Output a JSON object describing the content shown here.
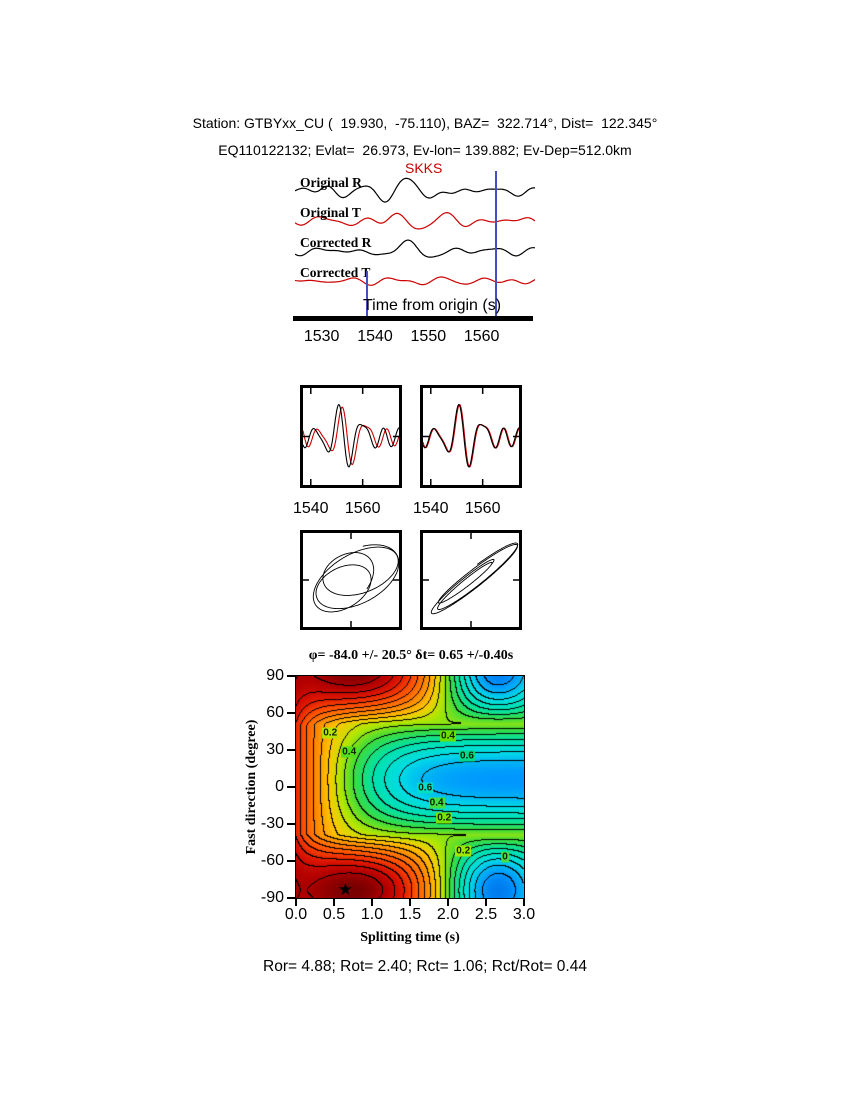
{
  "header": {
    "line1": "Station: GTBYxx_CU (  19.930,  -75.110), BAZ=  322.714°, Dist=  122.345°",
    "line2": "EQ110122132; Evlat=  26.973, Ev-lon= 139.882; Ev-Dep=512.0km"
  },
  "footer": {
    "stats": "Ror= 4.88; Rot= 2.40; Rct= 1.06; Rct/Rot= 0.44"
  },
  "colors": {
    "radial_trace": "#000000",
    "transverse_trace": "#cc0000",
    "window_marker": "#4450c0",
    "star": "#000000",
    "low_misfit": "#780000",
    "mid_misfit": "#3cdc3c",
    "high_misfit": "#003cc8"
  },
  "chart_data": {
    "type": "composite-shear-wave-splitting",
    "seismograms": {
      "phase_label": "SKKS",
      "axis": {
        "label": "Time from origin (s)",
        "t_min": 1525,
        "t_max": 1570,
        "ticks": [
          1530,
          1540,
          1550,
          1560
        ]
      },
      "window": {
        "start": 1538.3,
        "end": 1562.5
      },
      "traces": [
        {
          "label": "Original R",
          "color": "#000000",
          "base": 26,
          "components": [
            {
              "type": "gabor",
              "t0": 1546.5,
              "s": 4.5,
              "T": 9.5,
              "a": 15,
              "ph": 0.3
            },
            {
              "type": "gabor",
              "t0": 1532,
              "s": 3,
              "T": 7,
              "a": 3.5,
              "ph": 1.2
            },
            {
              "type": "sin",
              "T": 6.3,
              "a": 2.0,
              "ph": 0.5
            },
            {
              "type": "sin",
              "T": 11,
              "a": 2.3,
              "ph": 2.1
            },
            {
              "type": "sin",
              "T": 4.2,
              "a": 1.0,
              "ph": 4.0
            }
          ]
        },
        {
          "label": "Original T",
          "color": "#cc0000",
          "base": 56,
          "components": [
            {
              "type": "gabor",
              "t0": 1547,
              "s": 5,
              "T": 9.5,
              "a": 6,
              "ph": 2.2
            },
            {
              "type": "sin",
              "T": 7.5,
              "a": 2.6,
              "ph": 1.0
            },
            {
              "type": "sin",
              "T": 5.1,
              "a": 1.8,
              "ph": 3.3
            },
            {
              "type": "sin",
              "T": 12,
              "a": 2.0,
              "ph": 5.0
            }
          ]
        },
        {
          "label": "Corrected R",
          "color": "#000000",
          "base": 86,
          "components": [
            {
              "type": "gabor",
              "t0": 1546.8,
              "s": 4.5,
              "T": 9.5,
              "a": 14,
              "ph": 0.5
            },
            {
              "type": "sin",
              "T": 6.8,
              "a": 1.8,
              "ph": 2.5
            },
            {
              "type": "sin",
              "T": 10,
              "a": 2.1,
              "ph": 0.8
            },
            {
              "type": "sin",
              "T": 4.5,
              "a": 1.0,
              "ph": 3.9
            }
          ]
        },
        {
          "label": "Corrected T",
          "color": "#cc0000",
          "base": 116,
          "components": [
            {
              "type": "gabor",
              "t0": 1549,
              "s": 6,
              "T": 8,
              "a": 2.5,
              "ph": 4.0
            },
            {
              "type": "sin",
              "T": 6.0,
              "a": 1.6,
              "ph": 1.9
            },
            {
              "type": "sin",
              "T": 9,
              "a": 1.5,
              "ph": 4.4
            },
            {
              "type": "sin",
              "T": 4.8,
              "a": 0.9,
              "ph": 0.2
            }
          ]
        }
      ]
    },
    "wave_pairs": {
      "t_min": 1537,
      "t_max": 1574,
      "ticks": [
        1540,
        1560
      ],
      "components": [
        {
          "type": "gabor",
          "t0": 1551,
          "s": 7,
          "T": 9,
          "a": 20,
          "ph": 0.3
        },
        {
          "type": "sin",
          "T": 5.6,
          "a": 6,
          "ph": 1.5
        },
        {
          "type": "sin",
          "T": 8.4,
          "a": 5.5,
          "ph": 3.8
        },
        {
          "type": "sin",
          "T": 13,
          "a": 4,
          "ph": 0.9
        }
      ],
      "boxes": [
        {
          "name": "original",
          "shift": 1.3,
          "scale": 0.92
        },
        {
          "name": "corrected",
          "shift": 0.3,
          "scale": 1.0
        }
      ]
    },
    "particle_motion": {
      "boxes": [
        {
          "name": "original",
          "x": [
            [
              34,
              0.5,
              0
            ],
            [
              14,
              0.23,
              1.0
            ]
          ],
          "y": [
            [
              26,
              0.5,
              1.15
            ],
            [
              11,
              0.19,
              2.0
            ]
          ]
        },
        {
          "name": "corrected",
          "x": [
            [
              34,
              0.5,
              0
            ],
            [
              13,
              0.27,
              0.5
            ]
          ],
          "y": [
            [
              27,
              0.5,
              0.28
            ],
            [
              10,
              0.27,
              0.95
            ]
          ]
        }
      ]
    },
    "misfit_surface": {
      "title": "φ= -84.0 +/- 20.5° δt= 0.65 +/-0.40s",
      "xlabel": "Splitting time (s)",
      "ylabel": "Fast direction (degree)",
      "phi_deg": -84.0,
      "phi_err_deg": 20.5,
      "dt_s": 0.65,
      "dt_err_s": 0.4,
      "x_range": [
        0,
        3
      ],
      "y_range": [
        -90,
        90
      ],
      "xticks": [
        "0.0",
        "0.5",
        "1.0",
        "1.5",
        "2.0",
        "2.5",
        "3.0"
      ],
      "yticks": [
        90,
        60,
        30,
        0,
        -30,
        -60,
        -90
      ],
      "best_fit": {
        "dt": 0.65,
        "phi": -84
      },
      "contour_interval": 0.05,
      "contour_labels": [
        {
          "text": "0.2",
          "dt": 0.45,
          "phi": 44,
          "bg": "#b8e400"
        },
        {
          "text": "0.4",
          "dt": 0.7,
          "phi": 28,
          "bg": "#55dd22"
        },
        {
          "text": "0.4",
          "dt": 2.0,
          "phi": 41,
          "bg": "#66e000"
        },
        {
          "text": "0.6",
          "dt": 2.25,
          "phi": 25,
          "bg": "#00d98c"
        },
        {
          "text": "0.6",
          "dt": 1.7,
          "phi": -1,
          "bg": "#00ddc8"
        },
        {
          "text": "0.4",
          "dt": 1.85,
          "phi": -13,
          "bg": "#44dd44"
        },
        {
          "text": "0.2",
          "dt": 1.95,
          "phi": -25,
          "bg": "#77e400"
        },
        {
          "text": "0.2",
          "dt": 2.2,
          "phi": -52,
          "bg": "#a0e800"
        },
        {
          "text": "0",
          "dt": 2.75,
          "phi": -57,
          "bg": "#44dd44"
        }
      ],
      "colormap": [
        [
          0.0,
          "#780000"
        ],
        [
          0.06,
          "#b20000"
        ],
        [
          0.13,
          "#dc1400"
        ],
        [
          0.22,
          "#ff5000"
        ],
        [
          0.32,
          "#ff8c00"
        ],
        [
          0.4,
          "#ffc800"
        ],
        [
          0.47,
          "#b4e600"
        ],
        [
          0.55,
          "#3cdc3c"
        ],
        [
          0.65,
          "#00e1aa"
        ],
        [
          0.75,
          "#00dce6"
        ],
        [
          0.85,
          "#0096ff"
        ],
        [
          1.0,
          "#003cc8"
        ]
      ],
      "model": {
        "phi0": -84,
        "min_dt": 0.75,
        "min_w": 1.6,
        "echo_dt": 2.6,
        "echo_w": 0.5,
        "echo_amp": 0.9,
        "max_amp": 0.7,
        "max_rise": 1.1,
        "floor": 0.3,
        "rise": 0.45
      }
    }
  }
}
